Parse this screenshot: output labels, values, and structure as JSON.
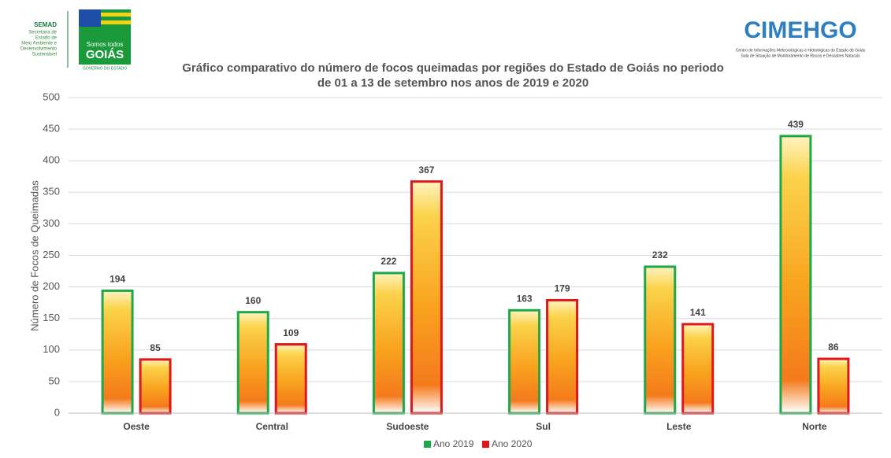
{
  "logos": {
    "semad": "SEMAD",
    "semad_sub": [
      "Secretaria de",
      "Estado de",
      "Meio Ambiente e",
      "Desenvolvimento",
      "Sustentável"
    ],
    "goias_top": "Somos todos",
    "goias": "GOIÁS",
    "governo": "GOVERNO DO ESTADO",
    "cimehgo": "CIMEHGO",
    "cimehgo_sub": [
      "Centro de Informações Meteorológicas e Hidrológicas do Estado de Goiás",
      "Sala de Situação de Monitoramento de Riscos e Desastres Naturais"
    ]
  },
  "chart_data": {
    "type": "bar",
    "title": [
      "Gráfico comparativo do número de focos queimadas por regiões do Estado de Goiás no periodo",
      "de 01 a 13 de setembro nos anos de 2019 e 2020"
    ],
    "y_label": "Número de Focos de Queimadas",
    "categories": [
      "Oeste",
      "Central",
      "Sudoeste",
      "Sul",
      "Leste",
      "Norte"
    ],
    "series": [
      {
        "name": "Ano 2019",
        "color": "#1fa84a",
        "values": [
          194,
          160,
          222,
          163,
          232,
          439
        ]
      },
      {
        "name": "Ano 2020",
        "color": "#e0161b",
        "values": [
          85,
          109,
          367,
          179,
          141,
          86
        ]
      }
    ],
    "ylim": [
      0,
      500
    ],
    "yticks": [
      0,
      50,
      100,
      150,
      200,
      250,
      300,
      350,
      400,
      450,
      500
    ],
    "grid": true,
    "legend": "bottom"
  }
}
